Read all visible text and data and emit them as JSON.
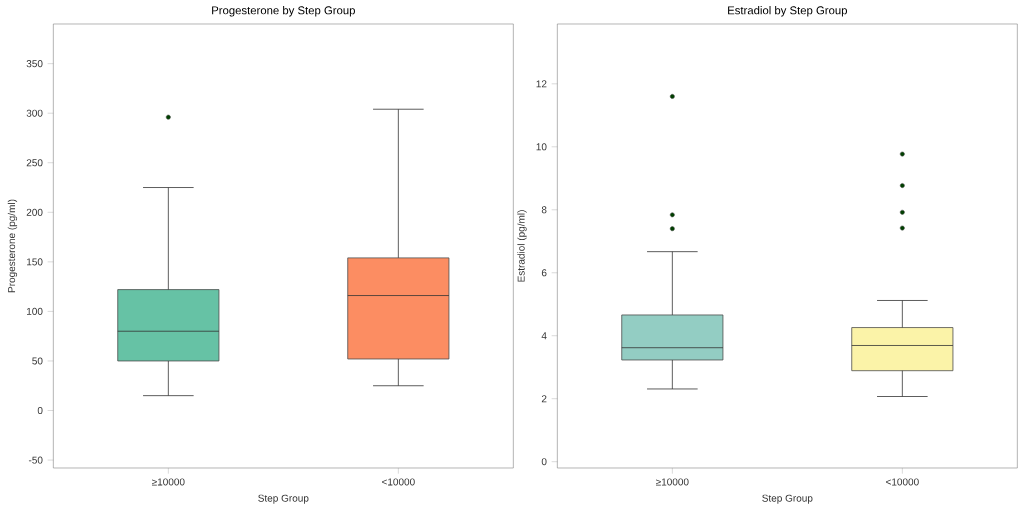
{
  "chart_data": [
    {
      "type": "box",
      "title": "Progesterone by Step Group",
      "xlabel": "Step Group",
      "ylabel": "Progesterone (pg/ml)",
      "categories": [
        "≥10000",
        "<10000"
      ],
      "colors": [
        "#66c2a5",
        "#fc8d62"
      ],
      "ylim": [
        -58,
        390
      ],
      "yticks": [
        -50,
        0,
        50,
        100,
        150,
        200,
        250,
        300,
        350
      ],
      "boxes": [
        {
          "low": 15,
          "q1": 50,
          "median": 80,
          "q3": 122,
          "high": 225,
          "outliers": [
            296
          ]
        },
        {
          "low": 25,
          "q1": 52,
          "median": 116,
          "q3": 154,
          "high": 304
        }
      ]
    },
    {
      "type": "box",
      "title": "Estradiol by Step Group",
      "xlabel": "Step Group",
      "ylabel": "Estradiol (pg/ml)",
      "categories": [
        "≥10000",
        "<10000"
      ],
      "colors": [
        "#93cdc3",
        "#fbf3a8"
      ],
      "ylim": [
        -0.2,
        13.9
      ],
      "yticks": [
        0,
        2,
        4,
        6,
        8,
        10,
        12
      ],
      "boxes": [
        {
          "low": 2.31,
          "q1": 3.23,
          "median": 3.62,
          "q3": 4.66,
          "high": 6.67,
          "outliers": [
            11.6,
            7.84,
            7.4
          ]
        },
        {
          "low": 2.07,
          "q1": 2.89,
          "median": 3.69,
          "q3": 4.26,
          "high": 5.12,
          "outliers": [
            9.77,
            8.77,
            7.92,
            7.42
          ]
        }
      ]
    }
  ]
}
